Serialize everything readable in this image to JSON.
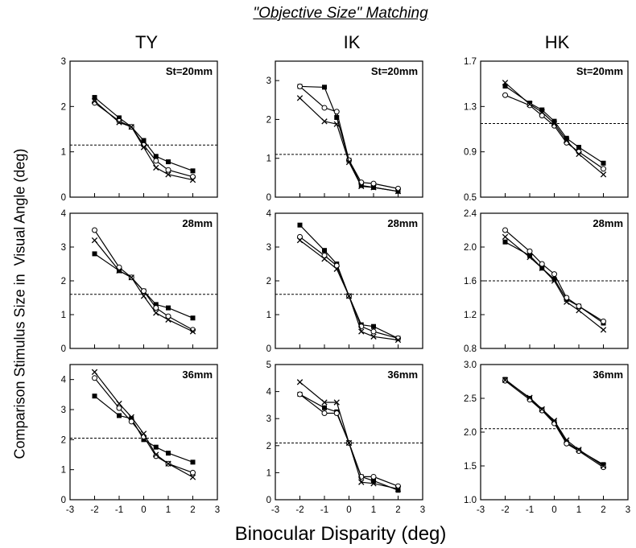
{
  "figure": {
    "title": "\"Objective Size\" Matching",
    "subjects": [
      "TY",
      "IK",
      "HK"
    ],
    "ylabel": "Comparison Stimulus Size in  Visual Angle (deg)",
    "xlabel": "Binocular Disparity (deg)"
  },
  "chart_data": [
    {
      "type": "line",
      "subject": "TY",
      "annotation": "St=20mm",
      "xlim": [
        -3,
        3
      ],
      "ylim": [
        0,
        3
      ],
      "xticks": [
        -3,
        -2,
        -1,
        0,
        1,
        2,
        3
      ],
      "yticks": [
        0,
        1,
        2,
        3
      ],
      "reference_y": 1.15,
      "x": [
        -2,
        -1,
        -0.5,
        0,
        0.5,
        1,
        2
      ],
      "series": [
        {
          "marker": "square",
          "values": [
            2.2,
            1.75,
            1.55,
            1.25,
            0.9,
            0.78,
            0.58
          ]
        },
        {
          "marker": "circle",
          "values": [
            2.08,
            1.68,
            1.55,
            1.15,
            0.8,
            0.6,
            0.45
          ]
        },
        {
          "marker": "x",
          "values": [
            2.12,
            1.65,
            1.55,
            1.1,
            0.65,
            0.5,
            0.38
          ]
        }
      ]
    },
    {
      "type": "line",
      "subject": "IK",
      "annotation": "St=20mm",
      "xlim": [
        -3,
        3
      ],
      "ylim": [
        0,
        3.5
      ],
      "xticks": [
        -3,
        -2,
        -1,
        0,
        1,
        2,
        3
      ],
      "yticks": [
        0,
        1,
        2,
        3
      ],
      "reference_y": 1.1,
      "x": [
        -2,
        -1,
        -0.5,
        0,
        0.5,
        1,
        2
      ],
      "series": [
        {
          "marker": "square",
          "values": [
            2.85,
            2.83,
            2.05,
            0.95,
            0.3,
            0.25,
            0.15
          ]
        },
        {
          "marker": "circle",
          "values": [
            2.85,
            2.3,
            2.2,
            0.95,
            0.38,
            0.35,
            0.22
          ]
        },
        {
          "marker": "x",
          "values": [
            2.55,
            1.95,
            1.88,
            0.9,
            0.28,
            0.25,
            0.15
          ]
        }
      ]
    },
    {
      "type": "line",
      "subject": "HK",
      "annotation": "St=20mm",
      "xlim": [
        -3,
        3
      ],
      "ylim": [
        0.5,
        1.7
      ],
      "xticks": [
        -3,
        -2,
        -1,
        0,
        1,
        2,
        3
      ],
      "yticks": [
        0.5,
        0.9,
        1.3,
        1.7
      ],
      "reference_y": 1.15,
      "x": [
        -2,
        -1,
        -0.5,
        0,
        0.5,
        1,
        2
      ],
      "series": [
        {
          "marker": "square",
          "values": [
            1.48,
            1.33,
            1.27,
            1.17,
            1.02,
            0.94,
            0.8
          ]
        },
        {
          "marker": "circle",
          "values": [
            1.4,
            1.31,
            1.22,
            1.13,
            0.98,
            0.9,
            0.75
          ]
        },
        {
          "marker": "x",
          "values": [
            1.51,
            1.32,
            1.25,
            1.15,
            1.0,
            0.88,
            0.7
          ]
        }
      ]
    },
    {
      "type": "line",
      "subject": "TY",
      "annotation": "28mm",
      "xlim": [
        -3,
        3
      ],
      "ylim": [
        0,
        4
      ],
      "xticks": [
        -3,
        -2,
        -1,
        0,
        1,
        2,
        3
      ],
      "yticks": [
        0,
        1,
        2,
        3,
        4
      ],
      "reference_y": 1.6,
      "x": [
        -2,
        -1,
        -0.5,
        0,
        0.5,
        1,
        2
      ],
      "series": [
        {
          "marker": "square",
          "values": [
            2.8,
            2.3,
            2.1,
            1.7,
            1.3,
            1.2,
            0.9
          ]
        },
        {
          "marker": "circle",
          "values": [
            3.5,
            2.4,
            2.1,
            1.7,
            1.2,
            0.95,
            0.55
          ]
        },
        {
          "marker": "x",
          "values": [
            3.2,
            2.3,
            2.1,
            1.55,
            1.05,
            0.85,
            0.5
          ]
        }
      ]
    },
    {
      "type": "line",
      "subject": "IK",
      "annotation": "28mm",
      "xlim": [
        -3,
        3
      ],
      "ylim": [
        0,
        4
      ],
      "xticks": [
        -3,
        -2,
        -1,
        0,
        1,
        2,
        3
      ],
      "yticks": [
        0,
        1,
        2,
        3,
        4
      ],
      "reference_y": 1.6,
      "x": [
        -2,
        -1,
        -0.5,
        0,
        0.5,
        1,
        2
      ],
      "series": [
        {
          "marker": "square",
          "values": [
            3.65,
            2.9,
            2.5,
            1.55,
            0.7,
            0.65,
            0.3
          ]
        },
        {
          "marker": "circle",
          "values": [
            3.3,
            2.75,
            2.45,
            1.55,
            0.65,
            0.5,
            0.3
          ]
        },
        {
          "marker": "x",
          "values": [
            3.2,
            2.65,
            2.35,
            1.55,
            0.5,
            0.35,
            0.25
          ]
        }
      ]
    },
    {
      "type": "line",
      "subject": "HK",
      "annotation": "28mm",
      "xlim": [
        -3,
        3
      ],
      "ylim": [
        0.8,
        2.4
      ],
      "xticks": [
        -3,
        -2,
        -1,
        0,
        1,
        2,
        3
      ],
      "yticks": [
        0.8,
        1.2,
        1.6,
        2.0,
        2.4
      ],
      "reference_y": 1.6,
      "x": [
        -2,
        -1,
        -0.5,
        0,
        0.5,
        1,
        2
      ],
      "series": [
        {
          "marker": "square",
          "values": [
            2.06,
            1.9,
            1.75,
            1.62,
            1.38,
            1.3,
            1.1
          ]
        },
        {
          "marker": "circle",
          "values": [
            2.2,
            1.95,
            1.8,
            1.68,
            1.4,
            1.3,
            1.12
          ]
        },
        {
          "marker": "x",
          "values": [
            2.12,
            1.88,
            1.75,
            1.6,
            1.35,
            1.25,
            1.02
          ]
        }
      ]
    },
    {
      "type": "line",
      "subject": "TY",
      "annotation": "36mm",
      "xlim": [
        -3,
        3
      ],
      "ylim": [
        0,
        4.5
      ],
      "xticks": [
        -3,
        -2,
        -1,
        0,
        1,
        2,
        3
      ],
      "yticks": [
        0,
        1,
        2,
        3,
        4
      ],
      "reference_y": 2.05,
      "x": [
        -2,
        -1,
        -0.5,
        0,
        0.5,
        1,
        2
      ],
      "series": [
        {
          "marker": "square",
          "values": [
            3.45,
            2.8,
            2.7,
            2.0,
            1.75,
            1.55,
            1.25
          ]
        },
        {
          "marker": "circle",
          "values": [
            4.05,
            3.05,
            2.6,
            2.1,
            1.45,
            1.2,
            0.9
          ]
        },
        {
          "marker": "x",
          "values": [
            4.25,
            3.2,
            2.75,
            2.2,
            1.5,
            1.2,
            0.75
          ]
        }
      ]
    },
    {
      "type": "line",
      "subject": "IK",
      "annotation": "36mm",
      "xlim": [
        -3,
        3
      ],
      "ylim": [
        0,
        5
      ],
      "xticks": [
        -3,
        -2,
        -1,
        0,
        1,
        2,
        3
      ],
      "yticks": [
        0,
        1,
        2,
        3,
        4,
        5
      ],
      "reference_y": 2.1,
      "x": [
        -2,
        -1,
        -0.5,
        0,
        0.5,
        1,
        2
      ],
      "series": [
        {
          "marker": "square",
          "values": [
            3.9,
            3.4,
            3.25,
            2.1,
            0.85,
            0.7,
            0.35
          ]
        },
        {
          "marker": "circle",
          "values": [
            3.9,
            3.2,
            3.2,
            2.1,
            0.85,
            0.85,
            0.5
          ]
        },
        {
          "marker": "x",
          "values": [
            4.35,
            3.6,
            3.6,
            2.1,
            0.65,
            0.6,
            0.4
          ]
        }
      ]
    },
    {
      "type": "line",
      "subject": "HK",
      "annotation": "36mm",
      "xlim": [
        -3,
        3
      ],
      "ylim": [
        1.0,
        3.0
      ],
      "xticks": [
        -3,
        -2,
        -1,
        0,
        1,
        2,
        3
      ],
      "yticks": [
        1.0,
        1.5,
        2.0,
        2.5,
        3.0
      ],
      "reference_y": 2.05,
      "x": [
        -2,
        -1,
        -0.5,
        0,
        0.5,
        1,
        2
      ],
      "series": [
        {
          "marker": "square",
          "values": [
            2.78,
            2.5,
            2.33,
            2.15,
            1.85,
            1.73,
            1.52
          ]
        },
        {
          "marker": "circle",
          "values": [
            2.76,
            2.48,
            2.32,
            2.13,
            1.83,
            1.72,
            1.48
          ]
        },
        {
          "marker": "x",
          "values": [
            2.77,
            2.51,
            2.34,
            2.17,
            1.88,
            1.74,
            1.5
          ]
        }
      ]
    }
  ]
}
